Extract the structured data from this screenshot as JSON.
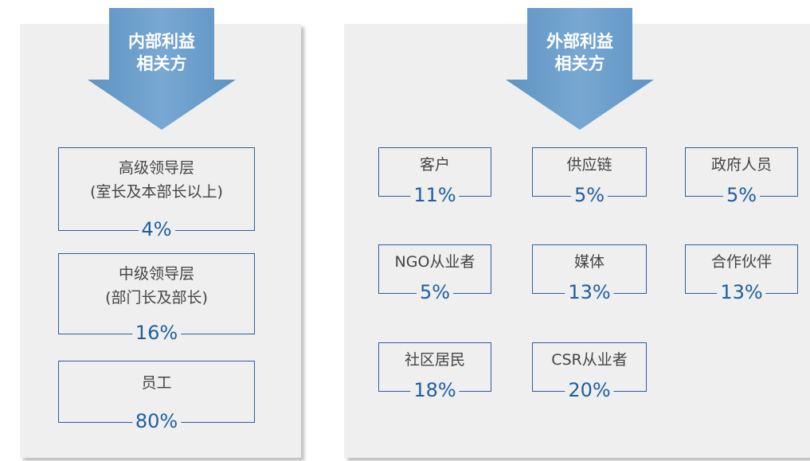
{
  "panels": [
    {
      "title": [
        "内部利益",
        "相关方"
      ],
      "boxes": [
        {
          "label": [
            "高级领导层",
            "(室长及本部长以上)"
          ],
          "value": "4%"
        },
        {
          "label": [
            "中级领导层",
            "(部门长及部长)"
          ],
          "value": "16%"
        },
        {
          "label": [
            "员工"
          ],
          "value": "80%"
        }
      ]
    },
    {
      "title": [
        "外部利益",
        "相关方"
      ],
      "boxes": [
        {
          "label": [
            "客户"
          ],
          "value": "11%"
        },
        {
          "label": [
            "供应链"
          ],
          "value": "5%"
        },
        {
          "label": [
            "政府人员"
          ],
          "value": "5%"
        },
        {
          "label": [
            "NGO从业者"
          ],
          "value": "5%"
        },
        {
          "label": [
            "媒体"
          ],
          "value": "13%"
        },
        {
          "label": [
            "合作伙伴"
          ],
          "value": "13%"
        },
        {
          "label": [
            "社区居民"
          ],
          "value": "18%"
        },
        {
          "label": [
            "CSR从业者"
          ],
          "value": "20%"
        }
      ]
    }
  ]
}
